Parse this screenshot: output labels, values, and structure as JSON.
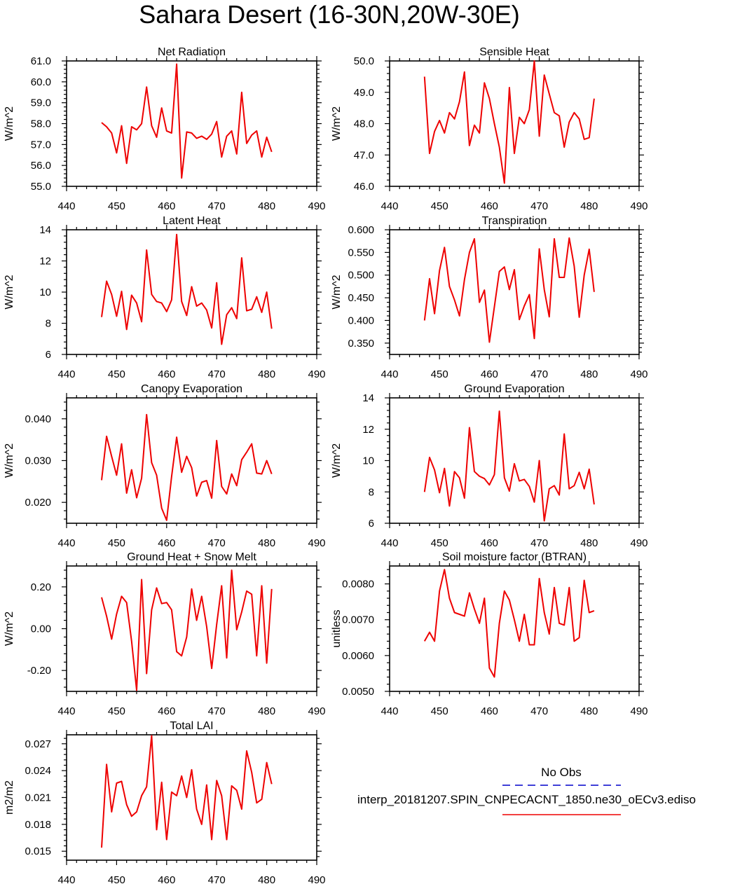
{
  "figure_title": "Sahara Desert (16-30N,20W-30E)",
  "colors": {
    "model": "#ee0000",
    "obs": "#0000cc",
    "axis": "#000000"
  },
  "legend": {
    "obs_label": "No Obs",
    "model_label": "interp_20181207.SPIN_CNPECACNT_1850.ne30_oECv3.ediso"
  },
  "chart_data": [
    {
      "type": "line",
      "title": "Net Radiation",
      "ylabel": "W/m^2",
      "xlim": [
        440,
        490
      ],
      "xticks": [
        "440",
        "450",
        "460",
        "470",
        "480",
        "490"
      ],
      "ylim": [
        55,
        61
      ],
      "yticks": [
        "55.0",
        "56.0",
        "57.0",
        "58.0",
        "59.0",
        "60.0",
        "61.0"
      ],
      "x": [
        447,
        448,
        449,
        450,
        451,
        452,
        453,
        454,
        455,
        456,
        457,
        458,
        459,
        460,
        461,
        462,
        463,
        464,
        465,
        466,
        467,
        468,
        469,
        470,
        471,
        472,
        473,
        474,
        475,
        476,
        477,
        478,
        479,
        480,
        481
      ],
      "values": [
        58.05,
        57.85,
        57.55,
        56.6,
        57.9,
        56.1,
        57.85,
        57.7,
        58.0,
        59.75,
        57.9,
        57.35,
        58.75,
        57.65,
        57.55,
        60.85,
        55.4,
        57.6,
        57.55,
        57.3,
        57.4,
        57.25,
        57.5,
        58.1,
        56.4,
        57.4,
        57.65,
        56.55,
        59.5,
        57.05,
        57.45,
        57.65,
        56.4,
        57.35,
        56.65
      ]
    },
    {
      "type": "line",
      "title": "Sensible Heat",
      "ylabel": "W/m^2",
      "xlim": [
        440,
        490
      ],
      "xticks": [
        "440",
        "450",
        "460",
        "470",
        "480",
        "490"
      ],
      "ylim": [
        46,
        50
      ],
      "yticks": [
        "46.0",
        "47.0",
        "48.0",
        "49.0",
        "50.0"
      ],
      "x": [
        447,
        448,
        449,
        450,
        451,
        452,
        453,
        454,
        455,
        456,
        457,
        458,
        459,
        460,
        461,
        462,
        463,
        464,
        465,
        466,
        467,
        468,
        469,
        470,
        471,
        472,
        473,
        474,
        475,
        476,
        477,
        478,
        479,
        480,
        481
      ],
      "values": [
        49.5,
        47.05,
        47.75,
        48.1,
        47.7,
        48.35,
        48.15,
        48.7,
        49.65,
        47.3,
        47.95,
        47.7,
        49.3,
        48.8,
        48.0,
        47.25,
        46.1,
        49.15,
        47.05,
        48.2,
        48.0,
        48.45,
        50.0,
        47.6,
        49.55,
        48.95,
        48.35,
        48.25,
        47.25,
        48.05,
        48.35,
        48.15,
        47.5,
        47.55,
        48.8
      ]
    },
    {
      "type": "line",
      "title": "Latent Heat",
      "ylabel": "W/m^2",
      "xlim": [
        440,
        490
      ],
      "xticks": [
        "440",
        "450",
        "460",
        "470",
        "480",
        "490"
      ],
      "ylim": [
        6,
        14
      ],
      "yticks": [
        "6",
        "8",
        "10",
        "12",
        "14"
      ],
      "x": [
        447,
        448,
        449,
        450,
        451,
        452,
        453,
        454,
        455,
        456,
        457,
        458,
        459,
        460,
        461,
        462,
        463,
        464,
        465,
        466,
        467,
        468,
        469,
        470,
        471,
        472,
        473,
        474,
        475,
        476,
        477,
        478,
        479,
        480,
        481
      ],
      "values": [
        8.4,
        10.7,
        9.85,
        8.45,
        10.05,
        7.6,
        9.8,
        9.3,
        8.1,
        12.7,
        9.85,
        9.4,
        9.3,
        8.75,
        9.5,
        13.7,
        9.4,
        8.5,
        10.35,
        9.1,
        9.3,
        8.85,
        7.7,
        10.6,
        6.65,
        8.55,
        9.0,
        8.3,
        12.2,
        8.8,
        8.9,
        9.7,
        8.7,
        10.0,
        7.65
      ]
    },
    {
      "type": "line",
      "title": "Transpiration",
      "ylabel": "W/m^2",
      "xlim": [
        440,
        490
      ],
      "xticks": [
        "440",
        "450",
        "460",
        "470",
        "480",
        "490"
      ],
      "ylim": [
        0.325,
        0.6
      ],
      "yticks": [
        "0.350",
        "0.400",
        "0.450",
        "0.500",
        "0.550",
        "0.600"
      ],
      "x": [
        447,
        448,
        449,
        450,
        451,
        452,
        453,
        454,
        455,
        456,
        457,
        458,
        459,
        460,
        461,
        462,
        463,
        464,
        465,
        466,
        467,
        468,
        469,
        470,
        471,
        472,
        473,
        474,
        475,
        476,
        477,
        478,
        479,
        480,
        481
      ],
      "values": [
        0.4,
        0.492,
        0.415,
        0.51,
        0.561,
        0.475,
        0.445,
        0.41,
        0.49,
        0.55,
        0.58,
        0.44,
        0.467,
        0.352,
        0.43,
        0.508,
        0.518,
        0.468,
        0.512,
        0.402,
        0.432,
        0.457,
        0.36,
        0.558,
        0.468,
        0.408,
        0.58,
        0.495,
        0.495,
        0.582,
        0.52,
        0.407,
        0.5,
        0.557,
        0.463
      ]
    },
    {
      "type": "line",
      "title": "Canopy Evaporation",
      "ylabel": "W/m^2",
      "xlim": [
        440,
        490
      ],
      "xticks": [
        "440",
        "450",
        "460",
        "470",
        "480",
        "490"
      ],
      "ylim": [
        0.015,
        0.045
      ],
      "yticks": [
        "0.020",
        "0.030",
        "0.040"
      ],
      "x": [
        447,
        448,
        449,
        450,
        451,
        452,
        453,
        454,
        455,
        456,
        457,
        458,
        459,
        460,
        461,
        462,
        463,
        464,
        465,
        466,
        467,
        468,
        469,
        470,
        471,
        472,
        473,
        474,
        475,
        476,
        477,
        478,
        479,
        480,
        481
      ],
      "values": [
        0.0253,
        0.0358,
        0.031,
        0.0265,
        0.034,
        0.0222,
        0.0278,
        0.0211,
        0.0258,
        0.041,
        0.0295,
        0.0265,
        0.0186,
        0.0157,
        0.0262,
        0.0356,
        0.0272,
        0.031,
        0.0283,
        0.0215,
        0.0248,
        0.0252,
        0.021,
        0.0348,
        0.0238,
        0.022,
        0.0268,
        0.024,
        0.0302,
        0.032,
        0.034,
        0.027,
        0.0268,
        0.03,
        0.0268
      ]
    },
    {
      "type": "line",
      "title": "Ground Evaporation",
      "ylabel": "W/m^2",
      "xlim": [
        440,
        490
      ],
      "xticks": [
        "440",
        "450",
        "460",
        "470",
        "480",
        "490"
      ],
      "ylim": [
        6,
        14
      ],
      "yticks": [
        "6",
        "8",
        "10",
        "12",
        "14"
      ],
      "x": [
        447,
        448,
        449,
        450,
        451,
        452,
        453,
        454,
        455,
        456,
        457,
        458,
        459,
        460,
        461,
        462,
        463,
        464,
        465,
        466,
        467,
        468,
        469,
        470,
        471,
        472,
        473,
        474,
        475,
        476,
        477,
        478,
        479,
        480,
        481
      ],
      "values": [
        8.0,
        10.2,
        9.4,
        7.95,
        9.5,
        7.1,
        9.3,
        8.9,
        7.6,
        12.1,
        9.3,
        9.0,
        8.85,
        8.45,
        9.1,
        13.15,
        8.9,
        8.05,
        9.8,
        8.7,
        8.8,
        8.35,
        7.35,
        10.0,
        6.15,
        8.2,
        8.4,
        7.8,
        11.7,
        8.2,
        8.4,
        9.25,
        8.2,
        9.45,
        7.2
      ]
    },
    {
      "type": "line",
      "title": "Ground Heat + Snow Melt",
      "ylabel": "W/m^2",
      "xlim": [
        440,
        490
      ],
      "xticks": [
        "440",
        "450",
        "460",
        "470",
        "480",
        "490"
      ],
      "ylim": [
        -0.3,
        0.3
      ],
      "yticks": [
        "-0.20",
        "0.00",
        "0.20"
      ],
      "x": [
        447,
        448,
        449,
        450,
        451,
        452,
        453,
        454,
        455,
        456,
        457,
        458,
        459,
        460,
        461,
        462,
        463,
        464,
        465,
        466,
        467,
        468,
        469,
        470,
        471,
        472,
        473,
        474,
        475,
        476,
        477,
        478,
        479,
        480,
        481
      ],
      "values": [
        0.15,
        0.06,
        -0.05,
        0.07,
        0.155,
        0.125,
        -0.06,
        -0.295,
        0.235,
        -0.215,
        0.09,
        0.195,
        0.12,
        0.125,
        0.09,
        -0.11,
        -0.13,
        -0.04,
        0.19,
        0.04,
        0.155,
        0.01,
        -0.19,
        0.02,
        0.205,
        -0.14,
        0.28,
        -0.005,
        0.08,
        0.18,
        0.165,
        -0.13,
        0.205,
        -0.165,
        0.19
      ]
    },
    {
      "type": "line",
      "title": "Soil moisture factor (BTRAN)",
      "ylabel": "unitless",
      "xlim": [
        440,
        490
      ],
      "xticks": [
        "440",
        "450",
        "460",
        "470",
        "480",
        "490"
      ],
      "ylim": [
        0.005,
        0.0085
      ],
      "yticks": [
        "0.0050",
        "0.0060",
        "0.0070",
        "0.0080"
      ],
      "x": [
        447,
        448,
        449,
        450,
        451,
        452,
        453,
        454,
        455,
        456,
        457,
        458,
        459,
        460,
        461,
        462,
        463,
        464,
        465,
        466,
        467,
        468,
        469,
        470,
        471,
        472,
        473,
        474,
        475,
        476,
        477,
        478,
        479,
        480,
        481
      ],
      "values": [
        0.0064,
        0.00665,
        0.0064,
        0.0078,
        0.0084,
        0.0076,
        0.0072,
        0.00715,
        0.0071,
        0.00775,
        0.0073,
        0.0069,
        0.0076,
        0.00565,
        0.0054,
        0.0069,
        0.0078,
        0.00755,
        0.007,
        0.0064,
        0.00715,
        0.0063,
        0.0063,
        0.00815,
        0.0072,
        0.0066,
        0.0079,
        0.0069,
        0.00685,
        0.0079,
        0.0064,
        0.0065,
        0.0081,
        0.0072,
        0.00725
      ]
    },
    {
      "type": "line",
      "title": "Total LAI",
      "ylabel": "m2/m2",
      "xlim": [
        440,
        490
      ],
      "xticks": [
        "440",
        "450",
        "460",
        "470",
        "480",
        "490"
      ],
      "ylim": [
        0.014,
        0.028
      ],
      "yticks": [
        "0.015",
        "0.018",
        "0.021",
        "0.024",
        "0.027"
      ],
      "x": [
        447,
        448,
        449,
        450,
        451,
        452,
        453,
        454,
        455,
        456,
        457,
        458,
        459,
        460,
        461,
        462,
        463,
        464,
        465,
        466,
        467,
        468,
        469,
        470,
        471,
        472,
        473,
        474,
        475,
        476,
        477,
        478,
        479,
        480,
        481
      ],
      "values": [
        0.0154,
        0.0247,
        0.0194,
        0.0226,
        0.0228,
        0.0202,
        0.0189,
        0.0194,
        0.0212,
        0.0222,
        0.0279,
        0.0174,
        0.0227,
        0.0163,
        0.0216,
        0.0212,
        0.0234,
        0.021,
        0.0241,
        0.0197,
        0.018,
        0.0224,
        0.0163,
        0.0229,
        0.0212,
        0.0163,
        0.0223,
        0.0218,
        0.0197,
        0.0262,
        0.0238,
        0.0204,
        0.0208,
        0.0249,
        0.0225
      ]
    }
  ]
}
